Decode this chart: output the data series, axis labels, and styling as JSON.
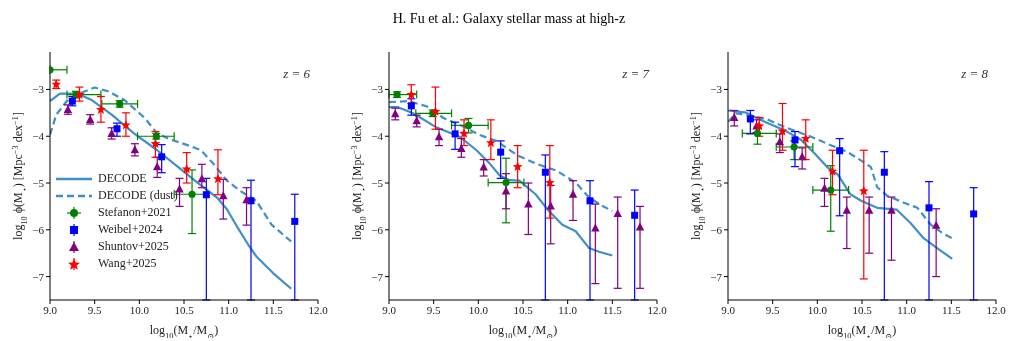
{
  "chart_data": [
    {
      "type": "scatter",
      "xlabel": "log$_{10}$(M$_{⋆}$/M$_{⊙}$)",
      "ylabel": "log$_{10}$ ϕ(M$_{⋆}$) [Mpc$^{−3}$ dex$^{−1}$]",
      "annotations": [
        "z = 6"
      ],
      "xlim": [
        9,
        12
      ],
      "ylim": [
        -7.5,
        -2.2
      ],
      "xticks": [
        {
          "value": 9,
          "label": "9.0"
        },
        {
          "value": 9.5,
          "label": "9.5"
        },
        {
          "value": 10,
          "label": "10.0"
        },
        {
          "value": 10.5,
          "label": "10.5"
        },
        {
          "value": 11,
          "label": "11.0"
        },
        {
          "value": 11.5,
          "label": "11.5"
        },
        {
          "value": 12,
          "label": "12.0"
        }
      ],
      "yticks": [
        {
          "value": -7,
          "label": "−7"
        },
        {
          "value": -6,
          "label": "−6"
        },
        {
          "value": -5,
          "label": "−5"
        },
        {
          "value": -4,
          "label": "−4"
        },
        {
          "value": -3,
          "label": "−3"
        }
      ],
      "legend": "bottom left",
      "series": [
        {
          "name": "DECODE",
          "type": "line",
          "color": "#3f8fc8",
          "line_style": "solid",
          "marker": "none",
          "x": [
            9.0,
            9.11,
            9.31,
            9.46,
            9.69,
            9.94,
            10.2,
            10.46,
            10.65,
            10.87,
            10.98,
            11.09,
            11.22,
            11.31,
            11.5,
            11.7
          ],
          "values": [
            -3.25,
            -3.09,
            -3.09,
            -3.22,
            -3.54,
            -3.94,
            -4.3,
            -4.7,
            -4.99,
            -5.31,
            -5.56,
            -5.92,
            -6.32,
            -6.57,
            -6.93,
            -7.26
          ]
        },
        {
          "name": "DECODE (dust)",
          "type": "line",
          "color": "#3f8fc8",
          "line_style": "dashed",
          "marker": "none",
          "x": [
            9.0,
            9.07,
            9.2,
            9.35,
            9.5,
            9.65,
            9.83,
            10.06,
            10.2,
            10.35,
            10.54,
            10.69,
            10.83,
            10.98,
            11.13,
            11.31,
            11.48,
            11.7
          ],
          "values": [
            -3.97,
            -3.54,
            -3.22,
            -3.07,
            -2.96,
            -3.04,
            -3.22,
            -3.61,
            -3.94,
            -4.07,
            -4.19,
            -4.3,
            -4.59,
            -4.95,
            -5.17,
            -5.38,
            -5.89,
            -6.25
          ]
        },
        {
          "name": "Stefanon+2021",
          "type": "scatter",
          "color": "#008000",
          "marker": "circle",
          "x": [
            9.0,
            9.29,
            9.78,
            10.19,
            10.59
          ],
          "values": [
            -2.58,
            -3.11,
            -3.31,
            -4.0,
            -5.24
          ],
          "errors": [
            null,
            [
              -3.18,
              -3.04
            ],
            [
              -3.38,
              -3.24
            ],
            [
              -4.06,
              -3.94
            ],
            [
              -6.08,
              -4.72
            ]
          ],
          "xerrors": [
            [
              9.0,
              9.19
            ],
            [
              9.19,
              9.57
            ],
            [
              9.58,
              9.98
            ],
            [
              9.98,
              10.39
            ],
            [
              10.39,
              10.76
            ]
          ]
        },
        {
          "name": "Weibel+2024",
          "type": "scatter",
          "color": "#0000ff",
          "marker": "square",
          "x": [
            9.25,
            9.75,
            10.25,
            10.75,
            11.25,
            11.74
          ],
          "values": [
            -3.25,
            -3.84,
            -4.44,
            -5.25,
            -5.38,
            -5.82
          ],
          "errors": [
            [
              -3.35,
              -3.15
            ],
            [
              -4.0,
              -3.72
            ],
            [
              -4.78,
              -4.18
            ],
            [
              -7.5,
              -4.9
            ],
            [
              -7.5,
              -4.94
            ],
            [
              -7.5,
              -5.24
            ]
          ]
        },
        {
          "name": "Shuntov+2025",
          "type": "scatter",
          "color": "#800080",
          "marker": "triangle",
          "x": [
            9.2,
            9.45,
            9.69,
            9.95,
            10.2,
            10.45,
            10.7,
            10.94,
            11.2
          ],
          "values": [
            -3.43,
            -3.64,
            -3.94,
            -4.29,
            -4.65,
            -5.13,
            -4.91,
            -5.27,
            -5.36
          ],
          "errors": [
            [
              -3.53,
              -3.33
            ],
            [
              -3.74,
              -3.54
            ],
            [
              -4.06,
              -3.82
            ],
            [
              -4.42,
              -4.16
            ],
            [
              -4.88,
              -4.45
            ],
            [
              -5.5,
              -4.9
            ],
            [
              -5.1,
              -4.6
            ],
            [
              -5.77,
              -4.92
            ],
            [
              -5.9,
              -5.1
            ]
          ]
        },
        {
          "name": "Wang+2025",
          "type": "scatter",
          "color": "#ff0000",
          "marker": "star",
          "x": [
            9.07,
            9.33,
            9.57,
            9.85,
            10.18,
            10.53,
            10.88
          ],
          "values": [
            -2.89,
            -3.11,
            -3.43,
            -3.76,
            -4.16,
            -4.7,
            -4.91
          ],
          "errors": [
            [
              -2.98,
              -2.8
            ],
            [
              -3.25,
              -2.95
            ],
            [
              -3.7,
              -3.15
            ],
            [
              -4.0,
              -3.5
            ],
            [
              -4.45,
              -3.9
            ],
            [
              -5.0,
              -4.35
            ],
            [
              -5.25,
              -4.29
            ]
          ]
        }
      ]
    },
    {
      "type": "scatter",
      "title": "H. Fu et al.: Galaxy stellar mass at high-z",
      "xlabel": "log$_{10}$(M$_{⋆}$/M$_{⊙}$)",
      "ylabel": "log$_{10}$ ϕ(M$_{⋆}$) [Mpc$^{−3}$ dex$^{−1}$]",
      "annotations": [
        "z = 7"
      ],
      "xlim": [
        9,
        12
      ],
      "ylim": [
        -7.5,
        -2.2
      ],
      "xticks": [
        {
          "value": 9,
          "label": "9.0"
        },
        {
          "value": 9.5,
          "label": "9.5"
        },
        {
          "value": 10,
          "label": "10.0"
        },
        {
          "value": 10.5,
          "label": "10.5"
        },
        {
          "value": 11,
          "label": "11.0"
        },
        {
          "value": 11.5,
          "label": "11.5"
        },
        {
          "value": 12,
          "label": "12.0"
        }
      ],
      "yticks": [
        {
          "value": -7,
          "label": "−7"
        },
        {
          "value": -6,
          "label": "−6"
        },
        {
          "value": -5,
          "label": "−5"
        },
        {
          "value": -4,
          "label": "−4"
        },
        {
          "value": -3,
          "label": "−3"
        }
      ],
      "series": [
        {
          "type": "line",
          "color": "#3f8fc8",
          "line_style": "solid",
          "marker": "none",
          "x": [
            9.0,
            9.1,
            9.27,
            9.53,
            9.79,
            9.98,
            10.13,
            10.24,
            10.35,
            10.46,
            10.64,
            10.79,
            10.94,
            11.09,
            11.24,
            11.35,
            11.5
          ],
          "values": [
            -3.38,
            -3.38,
            -3.51,
            -3.81,
            -4.01,
            -4.3,
            -4.59,
            -4.84,
            -4.94,
            -4.95,
            -5.24,
            -5.6,
            -5.89,
            -6.03,
            -6.39,
            -6.47,
            -6.55
          ]
        },
        {
          "type": "line",
          "color": "#3f8fc8",
          "line_style": "dashed",
          "marker": "none",
          "x": [
            9.0,
            9.22,
            9.42,
            9.61,
            9.83,
            10.01,
            10.2,
            10.44,
            10.65,
            10.87,
            11.09,
            11.24,
            11.39,
            11.5
          ],
          "values": [
            -3.27,
            -3.25,
            -3.36,
            -3.61,
            -3.79,
            -3.97,
            -4.1,
            -4.41,
            -4.59,
            -4.73,
            -4.99,
            -5.31,
            -5.49,
            -5.6
          ]
        },
        {
          "type": "scatter",
          "color": "#008000",
          "marker": "circle",
          "x": [
            9.09,
            9.49,
            9.89,
            10.31
          ],
          "values": [
            -3.11,
            -3.51,
            -3.77,
            -4.99
          ],
          "errors": [
            [
              -3.17,
              -3.05
            ],
            [
              -3.58,
              -3.44
            ],
            [
              -3.93,
              -3.62
            ],
            [
              -5.85,
              -4.47
            ]
          ],
          "xerrors": [
            [
              9.0,
              9.31
            ],
            [
              9.3,
              9.7
            ],
            [
              9.7,
              10.11
            ],
            [
              10.11,
              10.51
            ]
          ]
        },
        {
          "type": "scatter",
          "color": "#0000ff",
          "marker": "square",
          "x": [
            9.25,
            9.74,
            10.25,
            10.75,
            11.25,
            11.75
          ],
          "values": [
            -3.35,
            -3.95,
            -4.34,
            -4.77,
            -5.38,
            -5.69
          ],
          "errors": [
            [
              -3.55,
              -3.2
            ],
            [
              -4.28,
              -3.7
            ],
            [
              -4.9,
              -4.1
            ],
            [
              -7.5,
              -4.4
            ],
            [
              -7.5,
              -4.95
            ],
            [
              -7.5,
              -5.15
            ]
          ]
        },
        {
          "type": "scatter",
          "color": "#800080",
          "marker": "triangle",
          "x": [
            9.07,
            9.31,
            9.56,
            9.81,
            10.06,
            10.31,
            10.56,
            10.81,
            11.06,
            11.31,
            11.56,
            11.81
          ],
          "values": [
            -3.52,
            -3.67,
            -4.01,
            -4.26,
            -4.66,
            -5.17,
            -5.45,
            -5.49,
            -5.24,
            -5.96,
            -5.65,
            -5.94
          ],
          "errors": [
            [
              -3.65,
              -3.4
            ],
            [
              -3.8,
              -3.55
            ],
            [
              -4.2,
              -3.85
            ],
            [
              -4.45,
              -4.05
            ],
            [
              -4.85,
              -4.5
            ],
            [
              -5.55,
              -4.8
            ],
            [
              -6.1,
              -5.0
            ],
            [
              -6.3,
              -5.05
            ],
            [
              -5.8,
              -4.95
            ],
            [
              -7.15,
              -5.45
            ],
            [
              -7.25,
              -5.3
            ],
            [
              -7.25,
              -5.5
            ]
          ]
        },
        {
          "type": "scatter",
          "color": "#ff0000",
          "marker": "star",
          "x": [
            9.25,
            9.52,
            9.84,
            10.14,
            10.44,
            10.8
          ],
          "values": [
            -3.11,
            -3.47,
            -3.94,
            -4.14,
            -4.65,
            -4.99
          ],
          "errors": [
            [
              -3.3,
              -2.9
            ],
            [
              -3.85,
              -2.95
            ],
            [
              -4.2,
              -3.65
            ],
            [
              -4.5,
              -3.65
            ],
            [
              -5.1,
              -4.2
            ],
            [
              -5.75,
              -4.2
            ]
          ]
        }
      ]
    },
    {
      "type": "scatter",
      "xlabel": "log$_{10}$(M$_{⋆}$/M$_{⊙}$)",
      "ylabel": "log$_{10}$ ϕ(M$_{⋆}$) [Mpc$^{−3}$ dex$^{−1}$]",
      "annotations": [
        "z = 8"
      ],
      "xlim": [
        9,
        12
      ],
      "ylim": [
        -7.5,
        -2.2
      ],
      "xticks": [
        {
          "value": 9,
          "label": "9.0"
        },
        {
          "value": 9.5,
          "label": "9.5"
        },
        {
          "value": 10,
          "label": "10.0"
        },
        {
          "value": 10.5,
          "label": "10.5"
        },
        {
          "value": 11,
          "label": "11.0"
        },
        {
          "value": 11.5,
          "label": "11.5"
        },
        {
          "value": 12,
          "label": "12.0"
        }
      ],
      "yticks": [
        {
          "value": -7,
          "label": "−7"
        },
        {
          "value": -6,
          "label": "−6"
        },
        {
          "value": -5,
          "label": "−5"
        },
        {
          "value": -4,
          "label": "−4"
        },
        {
          "value": -3,
          "label": "−3"
        }
      ],
      "series": [
        {
          "type": "line",
          "color": "#3f8fc8",
          "line_style": "solid",
          "marker": "none",
          "x": [
            9.0,
            9.19,
            9.41,
            9.63,
            9.82,
            9.97,
            10.11,
            10.23,
            10.37,
            10.49,
            10.67,
            10.89,
            11.04,
            11.19,
            11.34,
            11.51
          ],
          "values": [
            -3.45,
            -3.49,
            -3.69,
            -3.87,
            -4.08,
            -4.37,
            -4.66,
            -4.82,
            -5.24,
            -5.38,
            -5.53,
            -5.57,
            -5.85,
            -6.18,
            -6.39,
            -6.62
          ]
        },
        {
          "type": "line",
          "color": "#3f8fc8",
          "line_style": "dashed",
          "marker": "none",
          "x": [
            9.0,
            9.09,
            9.22,
            9.45,
            9.67,
            9.93,
            10.11,
            10.34,
            10.49,
            10.6,
            10.67,
            10.78,
            10.97,
            11.12,
            11.27,
            11.4,
            11.51
          ],
          "values": [
            -3.69,
            -3.51,
            -3.54,
            -3.65,
            -3.83,
            -4.01,
            -4.16,
            -4.34,
            -4.52,
            -4.66,
            -5.09,
            -5.27,
            -5.42,
            -5.53,
            -5.89,
            -6.07,
            -6.18
          ]
        },
        {
          "type": "scatter",
          "color": "#008000",
          "marker": "circle",
          "x": [
            9.33,
            9.74,
            10.15
          ],
          "values": [
            -3.94,
            -4.23,
            -5.15
          ],
          "errors": [
            [
              -4.17,
              -3.8
            ],
            [
              -4.5,
              -4.1
            ],
            [
              -6.03,
              -4.63
            ]
          ],
          "xerrors": [
            [
              9.16,
              9.54
            ],
            [
              9.54,
              9.95
            ],
            [
              9.95,
              10.35
            ]
          ]
        },
        {
          "type": "scatter",
          "color": "#0000ff",
          "marker": "square",
          "x": [
            9.25,
            9.75,
            10.25,
            10.75,
            11.25,
            11.75
          ],
          "values": [
            -3.63,
            -4.08,
            -4.31,
            -4.77,
            -5.53,
            -5.66
          ],
          "errors": [
            [
              -3.95,
              -3.45
            ],
            [
              -4.65,
              -3.9
            ],
            [
              -5.7,
              -4.05
            ],
            [
              -7.5,
              -4.33
            ],
            [
              -7.5,
              -4.97
            ],
            [
              -7.5,
              -5.1
            ]
          ]
        },
        {
          "type": "scatter",
          "color": "#800080",
          "marker": "triangle",
          "x": [
            9.07,
            9.32,
            9.58,
            9.83,
            10.08,
            10.33,
            10.58,
            10.83,
            11.33
          ],
          "values": [
            -3.6,
            -3.78,
            -4.12,
            -4.44,
            -5.11,
            -5.58,
            -5.58,
            -5.58,
            -5.9
          ],
          "errors": [
            [
              -3.78,
              -3.45
            ],
            [
              -3.92,
              -3.65
            ],
            [
              -4.35,
              -3.95
            ],
            [
              -4.7,
              -4.25
            ],
            [
              -5.5,
              -4.9
            ],
            [
              -6.4,
              -5.3
            ],
            [
              -6.5,
              -5.3
            ],
            [
              -6.65,
              -5.3
            ],
            [
              -7.0,
              -5.55
            ]
          ]
        },
        {
          "type": "scatter",
          "color": "#ff0000",
          "marker": "star",
          "x": [
            9.35,
            9.61,
            9.87,
            10.17,
            10.52
          ],
          "values": [
            -3.78,
            -3.89,
            -4.05,
            -4.75,
            -5.17
          ],
          "errors": [
            [
              -4.0,
              -3.6
            ],
            [
              -4.3,
              -3.3
            ],
            [
              -4.5,
              -3.65
            ],
            [
              -5.25,
              -4.3
            ],
            [
              -7.05,
              -4.3
            ]
          ]
        }
      ]
    }
  ]
}
